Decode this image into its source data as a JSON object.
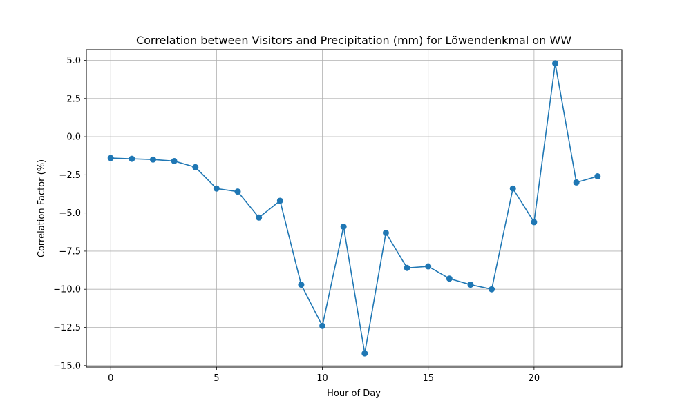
{
  "chart_data": {
    "type": "line",
    "title": "Correlation between Visitors and Precipitation (mm) for Löwendenkmal on WW",
    "xlabel": "Hour of Day",
    "ylabel": "Correlation Factor (%)",
    "xlim": [
      -1.15,
      24.15
    ],
    "ylim": [
      -15.1,
      5.7
    ],
    "xticks": [
      0,
      5,
      10,
      15,
      20
    ],
    "xtick_labels": [
      "0",
      "5",
      "10",
      "15",
      "20"
    ],
    "yticks": [
      5.0,
      2.5,
      0.0,
      -2.5,
      -5.0,
      -7.5,
      -10.0,
      -12.5,
      -15.0
    ],
    "ytick_labels": [
      "5.0",
      "2.5",
      "0.0",
      "−2.5",
      "−5.0",
      "−7.5",
      "−10.0",
      "−12.5",
      "−15.0"
    ],
    "grid": true,
    "series": [
      {
        "color": "#1f77b4",
        "marker": "circle",
        "x": [
          0,
          1,
          2,
          3,
          4,
          5,
          6,
          7,
          8,
          9,
          10,
          11,
          12,
          13,
          14,
          15,
          16,
          17,
          18,
          19,
          20,
          21,
          22,
          23
        ],
        "y": [
          -1.4,
          -1.45,
          -1.5,
          -1.6,
          -2.0,
          -3.4,
          -3.6,
          -5.3,
          -4.2,
          -9.7,
          -12.4,
          -5.9,
          -14.2,
          -6.3,
          -8.6,
          -8.5,
          -9.3,
          -9.7,
          -10.0,
          -3.4,
          -5.6,
          4.8,
          -3.0,
          -2.6
        ]
      }
    ]
  }
}
